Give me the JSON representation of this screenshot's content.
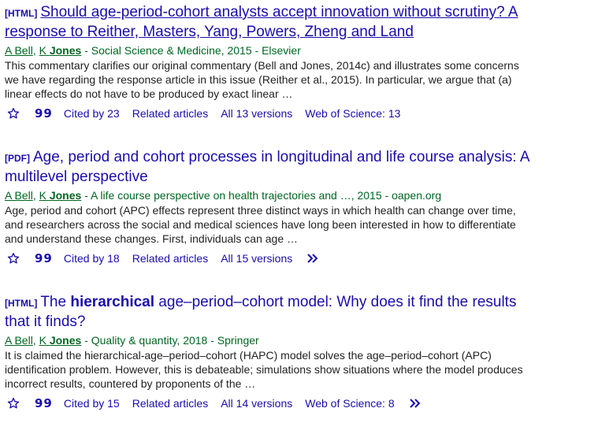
{
  "results": [
    {
      "tag": "[HTML]",
      "title_line1": "Should age-period-cohort analysts accept innovation without scrutiny? A",
      "title_line2": "response to Reither, Masters, Yang, Powers, Zheng and Land",
      "author1": "A Bell",
      "author2_initial": "K",
      "author2_surname": "Jones",
      "venue": " - Social Science & Medicine, 2015 - Elsevier",
      "snippet": "This commentary clarifies our original commentary (Bell and Jones, 2014c) and illustrates some concerns we have regarding the response article in this issue (Reither et al., 2015). In particular, we argue that (a) linear effects do not have to be produced by exact linear …",
      "cited_by": "Cited by 23",
      "related": "Related articles",
      "versions": "All 13 versions",
      "wos": "Web of Science: 13"
    },
    {
      "tag": "[PDF]",
      "title_line1": "Age, period and cohort processes in longitudinal and life course analysis: A",
      "title_line2": "multilevel perspective",
      "author1": "A Bell",
      "author2_initial": "K",
      "author2_surname": "Jones",
      "venue": " - A life course perspective on health trajectories and …, 2015 - oapen.org",
      "snippet": "Age, period and cohort (APC) effects represent three distinct ways in which health can change over time, and researchers across the social and medical sciences have long been interested in how to differentiate and understand these changes. First, individuals can age …",
      "cited_by": "Cited by 18",
      "related": "Related articles",
      "versions": "All 15 versions"
    },
    {
      "tag": "[HTML]",
      "title_pre": "The ",
      "title_bold": "hierarchical",
      "title_post": " age–period–cohort model: Why does it find the results",
      "title_line2": "that it finds?",
      "author1": "A Bell",
      "author2_initial": "K",
      "author2_surname": "Jones",
      "venue": " - Quality & quantity, 2018 - Springer",
      "snippet": "It is claimed the hierarchical-age–period–cohort (HAPC) model solves the age–period–cohort (APC) identification problem. However, this is debateable; simulations show situations where the model produces incorrect results, countered by proponents of the …",
      "cited_by": "Cited by 15",
      "related": "Related articles",
      "versions": "All 14 versions",
      "wos": "Web of Science: 8"
    }
  ],
  "icons": {
    "star": "star-icon",
    "quote": "quote-icon",
    "more": "double-chevron-icon",
    "quote_glyph": "99"
  }
}
